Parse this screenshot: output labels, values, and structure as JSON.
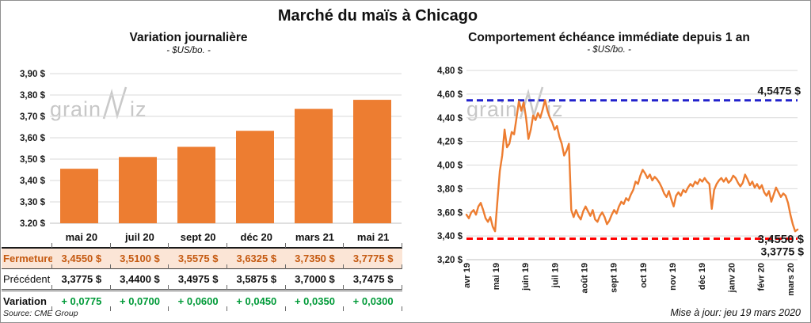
{
  "page_title": "Marché du maïs à Chicago",
  "update_note": "Mise à jour: jeu 19 mars 2020",
  "source_note": "Source: CME Group",
  "watermark": {
    "prefix": "grain",
    "suffix": "iz"
  },
  "colors": {
    "orange": "#ED7D31",
    "grid": "#D9D9D9",
    "axis": "#BFBFBF",
    "high_blue": "#2222CC",
    "low_red": "#FF0000",
    "fermeture_text": "#C55A11",
    "fermeture_bg": "#FBE5D6",
    "variation_green": "#009A38"
  },
  "chart_data": [
    {
      "type": "bar",
      "title": "Variation journalière",
      "subtitle": "- $US/bo. -",
      "categories": [
        "mai 20",
        "juil 20",
        "sept 20",
        "déc 20",
        "mars 21",
        "mai 21"
      ],
      "values": [
        3.455,
        3.51,
        3.5575,
        3.6325,
        3.735,
        3.7775
      ],
      "ylim": [
        3.2,
        3.9
      ],
      "yticks": [
        {
          "value": 3.9,
          "label": "3,90 $"
        },
        {
          "value": 3.8,
          "label": "3,80 $"
        },
        {
          "value": 3.7,
          "label": "3,70 $"
        },
        {
          "value": 3.6,
          "label": "3,60 $"
        },
        {
          "value": 3.5,
          "label": "3,50 $"
        },
        {
          "value": 3.4,
          "label": "3,40 $"
        },
        {
          "value": 3.3,
          "label": "3,30 $"
        },
        {
          "value": 3.2,
          "label": "3,20 $"
        }
      ],
      "grid": true,
      "legend": false
    },
    {
      "type": "line",
      "title": "Comportement échéance immédiate depuis 1 an",
      "subtitle": "- $US/bo. -",
      "ylim": [
        3.2,
        4.8
      ],
      "yticks": [
        {
          "value": 4.8,
          "label": "4,80 $"
        },
        {
          "value": 4.6,
          "label": "4,60 $"
        },
        {
          "value": 4.4,
          "label": "4,40 $"
        },
        {
          "value": 4.2,
          "label": "4,20 $"
        },
        {
          "value": 4.0,
          "label": "4,00 $"
        },
        {
          "value": 3.8,
          "label": "3,80 $"
        },
        {
          "value": 3.6,
          "label": "3,60 $"
        },
        {
          "value": 3.4,
          "label": "3,40 $"
        },
        {
          "value": 3.2,
          "label": "3,20 $"
        }
      ],
      "xticks": [
        "avr 19",
        "mai 19",
        "juin 19",
        "juil 19",
        "août 19",
        "sept 19",
        "oct 19",
        "nov 19",
        "déc 19",
        "janv 20",
        "févr 20",
        "mars 20"
      ],
      "series": [
        {
          "name": "échéance immédiate",
          "values": [
            3.58,
            3.55,
            3.6,
            3.62,
            3.58,
            3.65,
            3.68,
            3.62,
            3.55,
            3.52,
            3.56,
            3.48,
            3.44,
            3.7,
            3.95,
            4.08,
            4.3,
            4.15,
            4.18,
            4.28,
            4.26,
            4.4,
            4.54,
            4.46,
            4.53,
            4.4,
            4.22,
            4.3,
            4.42,
            4.38,
            4.44,
            4.4,
            4.47,
            4.55,
            4.46,
            4.4,
            4.36,
            4.3,
            4.33,
            4.24,
            4.18,
            4.08,
            4.12,
            4.18,
            3.62,
            3.56,
            3.62,
            3.57,
            3.54,
            3.61,
            3.65,
            3.61,
            3.57,
            3.62,
            3.54,
            3.52,
            3.57,
            3.6,
            3.56,
            3.5,
            3.53,
            3.58,
            3.62,
            3.59,
            3.65,
            3.69,
            3.67,
            3.72,
            3.7,
            3.75,
            3.79,
            3.86,
            3.84,
            3.91,
            3.96,
            3.93,
            3.89,
            3.92,
            3.87,
            3.9,
            3.88,
            3.85,
            3.81,
            3.76,
            3.73,
            3.78,
            3.71,
            3.65,
            3.74,
            3.77,
            3.74,
            3.79,
            3.77,
            3.81,
            3.84,
            3.82,
            3.86,
            3.84,
            3.88,
            3.86,
            3.89,
            3.86,
            3.84,
            3.63,
            3.79,
            3.84,
            3.87,
            3.89,
            3.86,
            3.89,
            3.85,
            3.87,
            3.91,
            3.89,
            3.85,
            3.82,
            3.85,
            3.92,
            3.88,
            3.83,
            3.86,
            3.81,
            3.84,
            3.8,
            3.83,
            3.77,
            3.74,
            3.78,
            3.69,
            3.75,
            3.81,
            3.77,
            3.73,
            3.76,
            3.74,
            3.68,
            3.58,
            3.5,
            3.44,
            3.455
          ]
        }
      ],
      "ref_lines": [
        {
          "id": "high",
          "value": 4.5475,
          "label": "4,5475 $",
          "color": "#2222CC"
        },
        {
          "id": "previous_close",
          "value": 3.3775,
          "label": "3,3775 $",
          "color": "#FF0000"
        }
      ],
      "end_label": {
        "value": 3.455,
        "label": "3,4550 $",
        "color": "#000000"
      }
    }
  ],
  "table": {
    "header": [
      "",
      "mai 20",
      "juil 20",
      "sept 20",
      "déc 20",
      "mars 21",
      "mai 21"
    ],
    "rows": [
      {
        "label": "Fermeture",
        "style": "fermeture",
        "values": [
          "3,4550 $",
          "3,5100 $",
          "3,5575 $",
          "3,6325 $",
          "3,7350 $",
          "3,7775 $"
        ]
      },
      {
        "label": "Précédent",
        "style": "precedent",
        "values": [
          "3,3775 $",
          "3,4400 $",
          "3,4975 $",
          "3,5875 $",
          "3,7000 $",
          "3,7475 $"
        ]
      },
      {
        "label": "Variation",
        "style": "variation",
        "values": [
          "+ 0,0775",
          "+ 0,0700",
          "+ 0,0600",
          "+ 0,0450",
          "+ 0,0350",
          "+ 0,0300"
        ]
      }
    ]
  }
}
